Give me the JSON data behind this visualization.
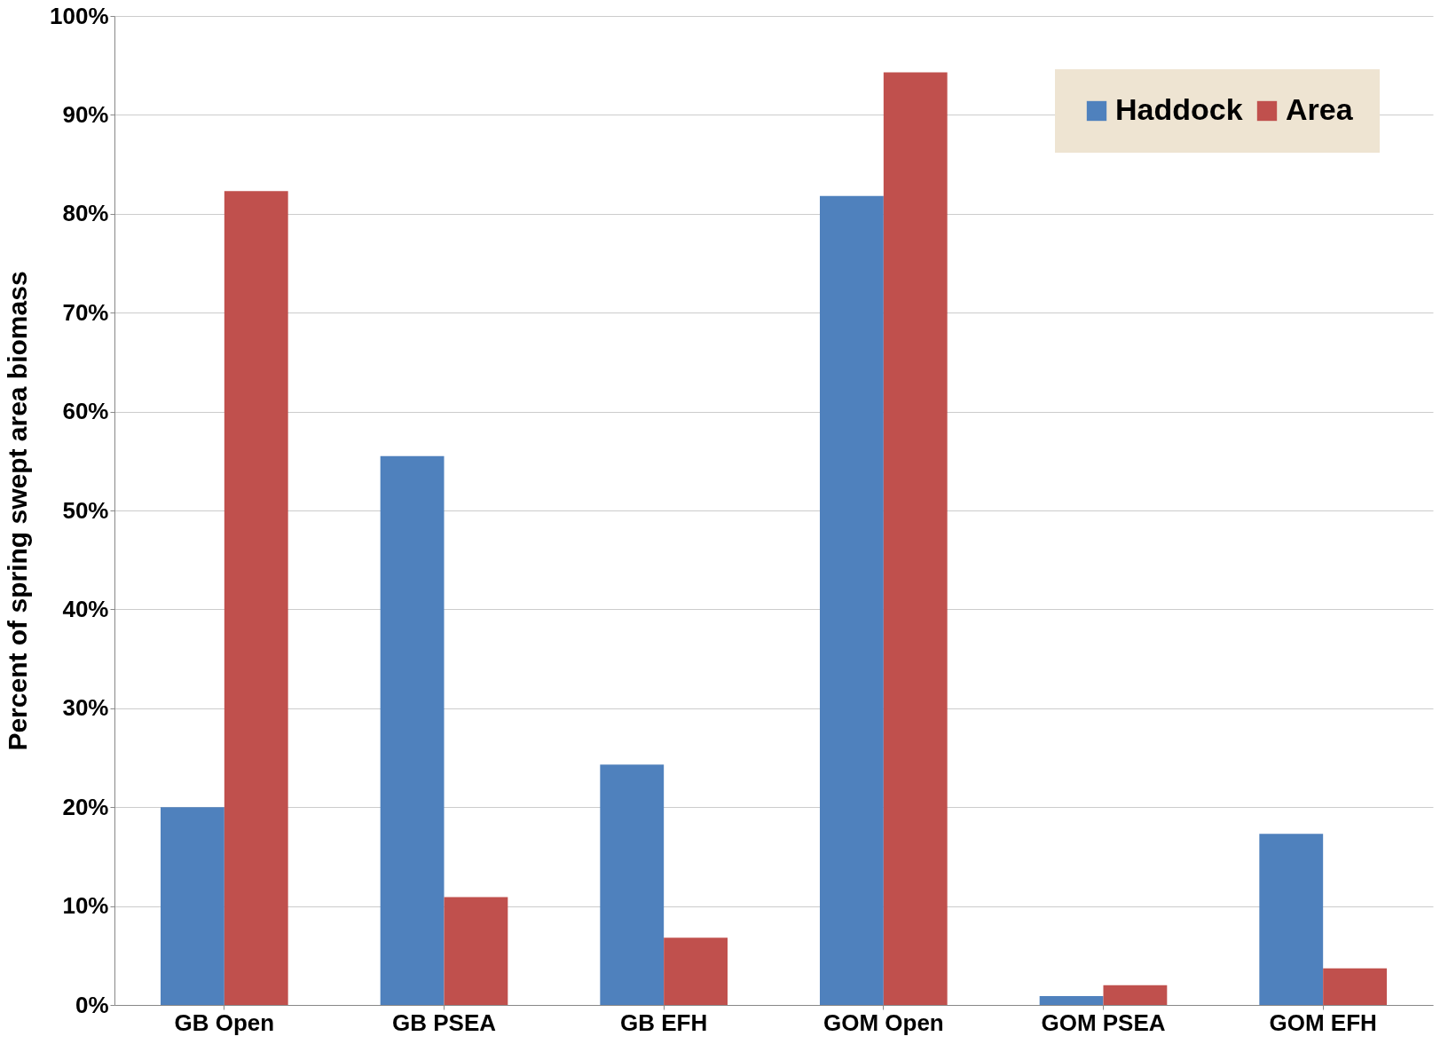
{
  "chart_data": {
    "type": "bar",
    "ylabel": "Percent of  spring swept area biomass",
    "categories": [
      "GB Open",
      "GB PSEA",
      "GB EFH",
      "GOM Open",
      "GOM PSEA",
      "GOM EFH"
    ],
    "series": [
      {
        "name": "Haddock",
        "color": "#4f81bd",
        "values": [
          20.0,
          55.5,
          24.3,
          81.8,
          0.9,
          17.3
        ]
      },
      {
        "name": "Area",
        "color": "#c0504d",
        "values": [
          82.3,
          10.9,
          6.8,
          94.3,
          2.0,
          3.7
        ]
      }
    ],
    "ylim": [
      0,
      100
    ],
    "yticks": [
      {
        "value": 0,
        "label": "0%"
      },
      {
        "value": 10,
        "label": "10%"
      },
      {
        "value": 20,
        "label": "20%"
      },
      {
        "value": 30,
        "label": "30%"
      },
      {
        "value": 40,
        "label": "40%"
      },
      {
        "value": 50,
        "label": "50%"
      },
      {
        "value": 60,
        "label": "60%"
      },
      {
        "value": 70,
        "label": "70%"
      },
      {
        "value": 80,
        "label": "80%"
      },
      {
        "value": 90,
        "label": "90%"
      },
      {
        "value": 100,
        "label": "100%"
      }
    ],
    "grid": "y",
    "legend": "top right"
  }
}
